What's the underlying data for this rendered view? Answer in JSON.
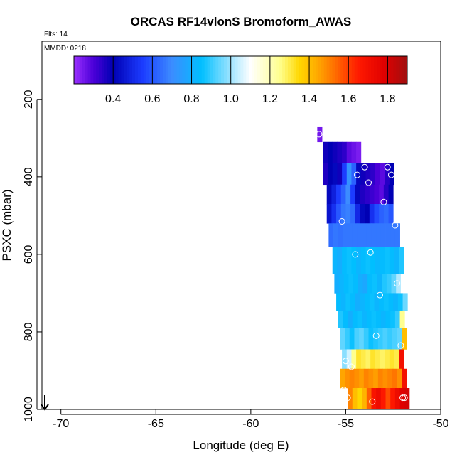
{
  "chart_data": {
    "type": "heatmap",
    "title": "ORCAS RF14vlonS Bromoform_AWAS",
    "flights_label": "Flts: 14",
    "date_label": "MMDD: 0218",
    "xlabel": "Longitude (deg E)",
    "ylabel": "PSXC (mbar)",
    "xlim": [
      -71,
      -50
    ],
    "ylim": [
      1000,
      50
    ],
    "y_inverted": true,
    "x_ticks": [
      -70,
      -65,
      -60,
      -55,
      -50
    ],
    "x_tick_labels": [
      "-70",
      "-65",
      "-60",
      "-55",
      "-50"
    ],
    "y_ticks": [
      200,
      400,
      600,
      800,
      1000
    ],
    "y_tick_labels": [
      "200",
      "400",
      "600",
      "800",
      "1000"
    ],
    "colorbar": {
      "range": [
        0.2,
        1.9
      ],
      "ticks": [
        0.4,
        0.6,
        0.8,
        1.0,
        1.2,
        1.4,
        1.6,
        1.8
      ],
      "tick_labels": [
        "0.4",
        "0.6",
        "0.8",
        "1.0",
        "1.2",
        "1.4",
        "1.6",
        "1.8"
      ],
      "stops": [
        {
          "v": 0.2,
          "color": "#9b30ff"
        },
        {
          "v": 0.3,
          "color": "#4b00d8"
        },
        {
          "v": 0.4,
          "color": "#0000b4"
        },
        {
          "v": 0.55,
          "color": "#1c3cff"
        },
        {
          "v": 0.7,
          "color": "#3c8cff"
        },
        {
          "v": 0.85,
          "color": "#00bfff"
        },
        {
          "v": 1.0,
          "color": "#a0e4ff"
        },
        {
          "v": 1.1,
          "color": "#ffffff"
        },
        {
          "v": 1.25,
          "color": "#ffff90"
        },
        {
          "v": 1.35,
          "color": "#ffd700"
        },
        {
          "v": 1.45,
          "color": "#ffa500"
        },
        {
          "v": 1.55,
          "color": "#ff6000"
        },
        {
          "v": 1.65,
          "color": "#ff1a00"
        },
        {
          "v": 1.78,
          "color": "#e00000"
        },
        {
          "v": 1.9,
          "color": "#a01010"
        }
      ]
    },
    "marker_at_left_axis": {
      "x": -70.8,
      "y": 1000,
      "symbol": "down-arrow"
    },
    "grid_rows": [
      {
        "p0": 270,
        "p1": 310,
        "x0": -56.5,
        "values": [
          0.25
        ]
      },
      {
        "p0": 310,
        "p1": 365,
        "x0": -56.2,
        "values": [
          0.38,
          0.4,
          0.38,
          0.36,
          0.34,
          0.28,
          0.26,
          0.24
        ]
      },
      {
        "p0": 365,
        "p1": 420,
        "x0": -56.2,
        "values": [
          0.36,
          0.4,
          0.42,
          0.38,
          0.55,
          0.72,
          0.62,
          0.42,
          0.38,
          0.36,
          0.34,
          0.3,
          0.28,
          0.35,
          0.4
        ]
      },
      {
        "p0": 420,
        "p1": 470,
        "x0": -56.0,
        "values": [
          0.42,
          0.48,
          0.55,
          0.62,
          0.7,
          0.55,
          0.42,
          0.36,
          0.34,
          0.32,
          0.3,
          0.28,
          0.35,
          0.4
        ]
      },
      {
        "p0": 470,
        "p1": 520,
        "x0": -56.0,
        "values": [
          0.45,
          0.52,
          0.6,
          0.66,
          0.68,
          0.64,
          0.5,
          0.42,
          0.4,
          0.52,
          0.58,
          0.62,
          0.64,
          0.6
        ]
      },
      {
        "p0": 520,
        "p1": 580,
        "x0": -55.9,
        "values": [
          0.64,
          0.66,
          0.65,
          0.66,
          0.66,
          0.66,
          0.66,
          0.66,
          0.66,
          0.66,
          0.66,
          0.66,
          0.66,
          0.66,
          0.66
        ]
      },
      {
        "p0": 580,
        "p1": 650,
        "x0": -55.7,
        "values": [
          0.82,
          0.8,
          0.84,
          0.86,
          0.85,
          0.82,
          0.84,
          0.86,
          0.85,
          0.83,
          0.84,
          0.86,
          0.84,
          0.82,
          0.88
        ]
      },
      {
        "p0": 650,
        "p1": 700,
        "x0": -55.6,
        "values": [
          0.8,
          0.82,
          0.84,
          0.86,
          0.84,
          0.8,
          0.78,
          0.84,
          0.86,
          0.82,
          0.88,
          0.9,
          0.94,
          1.02,
          1.1
        ]
      },
      {
        "p0": 700,
        "p1": 745,
        "x0": -55.5,
        "values": [
          0.84,
          0.82,
          0.86,
          0.84,
          0.8,
          0.82,
          0.84,
          0.86,
          0.82,
          0.84,
          0.86,
          0.84,
          0.82,
          0.86,
          0.95
        ]
      },
      {
        "p0": 745,
        "p1": 790,
        "x0": -55.4,
        "values": [
          0.88,
          0.84,
          0.8,
          0.84,
          0.86,
          0.82,
          0.84,
          0.86,
          0.84,
          0.82,
          0.84,
          0.86,
          0.9,
          1.25
        ]
      },
      {
        "p0": 790,
        "p1": 845,
        "x0": -55.3,
        "values": [
          0.94,
          0.9,
          0.86,
          0.92,
          0.94,
          0.9,
          0.86,
          0.88,
          0.9,
          0.92,
          0.9,
          0.92,
          0.94,
          1.4
        ]
      },
      {
        "p0": 845,
        "p1": 895,
        "x0": -55.2,
        "values": [
          0.98,
          1.05,
          1.25,
          1.32,
          1.3,
          1.28,
          1.32,
          1.3,
          1.28,
          1.3,
          1.32,
          1.3,
          1.7
        ]
      },
      {
        "p0": 895,
        "p1": 945,
        "x0": -55.3,
        "values": [
          1.45,
          1.48,
          1.5,
          1.48,
          1.46,
          1.5,
          1.48,
          1.46,
          1.5,
          1.48,
          1.5,
          1.52,
          1.48,
          1.7
        ]
      },
      {
        "p0": 945,
        "p1": 1000,
        "x0": -54.9,
        "values": [
          1.5,
          1.4,
          1.35,
          1.42,
          1.55,
          1.68,
          1.72,
          1.66,
          1.58,
          1.66,
          1.72,
          1.78,
          1.8
        ]
      }
    ],
    "cell_width_deg": 0.25,
    "x_max_deg": -51.3,
    "samples": [
      {
        "x": -56.4,
        "y": 290
      },
      {
        "x": -54.0,
        "y": 375
      },
      {
        "x": -52.8,
        "y": 375
      },
      {
        "x": -51.5,
        "y": 375
      },
      {
        "x": -54.4,
        "y": 395
      },
      {
        "x": -52.6,
        "y": 395
      },
      {
        "x": -53.8,
        "y": 415
      },
      {
        "x": -51.7,
        "y": 455
      },
      {
        "x": -53.0,
        "y": 465
      },
      {
        "x": -55.2,
        "y": 515
      },
      {
        "x": -52.4,
        "y": 525
      },
      {
        "x": -53.7,
        "y": 595
      },
      {
        "x": -54.5,
        "y": 600
      },
      {
        "x": -52.3,
        "y": 675
      },
      {
        "x": -51.8,
        "y": 690
      },
      {
        "x": -53.2,
        "y": 705
      },
      {
        "x": -53.4,
        "y": 810
      },
      {
        "x": -52.1,
        "y": 835
      },
      {
        "x": -55.0,
        "y": 875
      },
      {
        "x": -54.7,
        "y": 890
      },
      {
        "x": -55.1,
        "y": 950
      },
      {
        "x": -54.9,
        "y": 970
      },
      {
        "x": -53.6,
        "y": 980
      },
      {
        "x": -51.9,
        "y": 970
      },
      {
        "x": -52.0,
        "y": 970
      }
    ]
  }
}
